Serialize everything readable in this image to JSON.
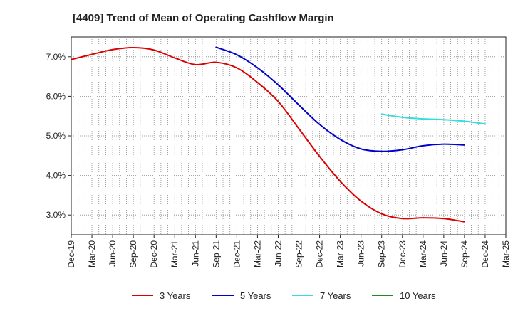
{
  "chart_data": {
    "type": "line",
    "title": "[4409]  Trend of Mean of Operating Cashflow Margin",
    "xlabel": "",
    "ylabel": "",
    "ylim": [
      2.5,
      7.5
    ],
    "yticks": [
      3.0,
      4.0,
      5.0,
      6.0,
      7.0
    ],
    "ytick_labels": [
      "3.0%",
      "4.0%",
      "5.0%",
      "6.0%",
      "7.0%"
    ],
    "x_tick_labels": [
      "Dec-19",
      "Mar-20",
      "Jun-20",
      "Sep-20",
      "Dec-20",
      "Mar-21",
      "Jun-21",
      "Sep-21",
      "Dec-21",
      "Mar-22",
      "Jun-22",
      "Sep-22",
      "Dec-22",
      "Mar-23",
      "Jun-23",
      "Sep-23",
      "Dec-23",
      "Mar-24",
      "Jun-24",
      "Sep-24",
      "Dec-24",
      "Mar-25"
    ],
    "grid": true,
    "legend_position": "bottom",
    "series": [
      {
        "name": "3 Years",
        "color": "#dd0000",
        "start": 0,
        "values": [
          6.93,
          7.06,
          7.18,
          7.23,
          7.17,
          6.97,
          6.8,
          6.86,
          6.72,
          6.35,
          5.87,
          5.18,
          4.48,
          3.85,
          3.35,
          3.03,
          2.91,
          2.93,
          2.91,
          2.83
        ]
      },
      {
        "name": "5 Years",
        "color": "#0000cc",
        "start": 7,
        "values": [
          7.24,
          7.05,
          6.72,
          6.29,
          5.78,
          5.29,
          4.91,
          4.67,
          4.61,
          4.65,
          4.75,
          4.79,
          4.77
        ]
      },
      {
        "name": "7 Years",
        "color": "#33dddd",
        "start": 15,
        "values": [
          5.55,
          5.47,
          5.43,
          5.41,
          5.37,
          5.3
        ]
      },
      {
        "name": "10 Years",
        "color": "#228822",
        "start": 0,
        "values": []
      }
    ]
  }
}
